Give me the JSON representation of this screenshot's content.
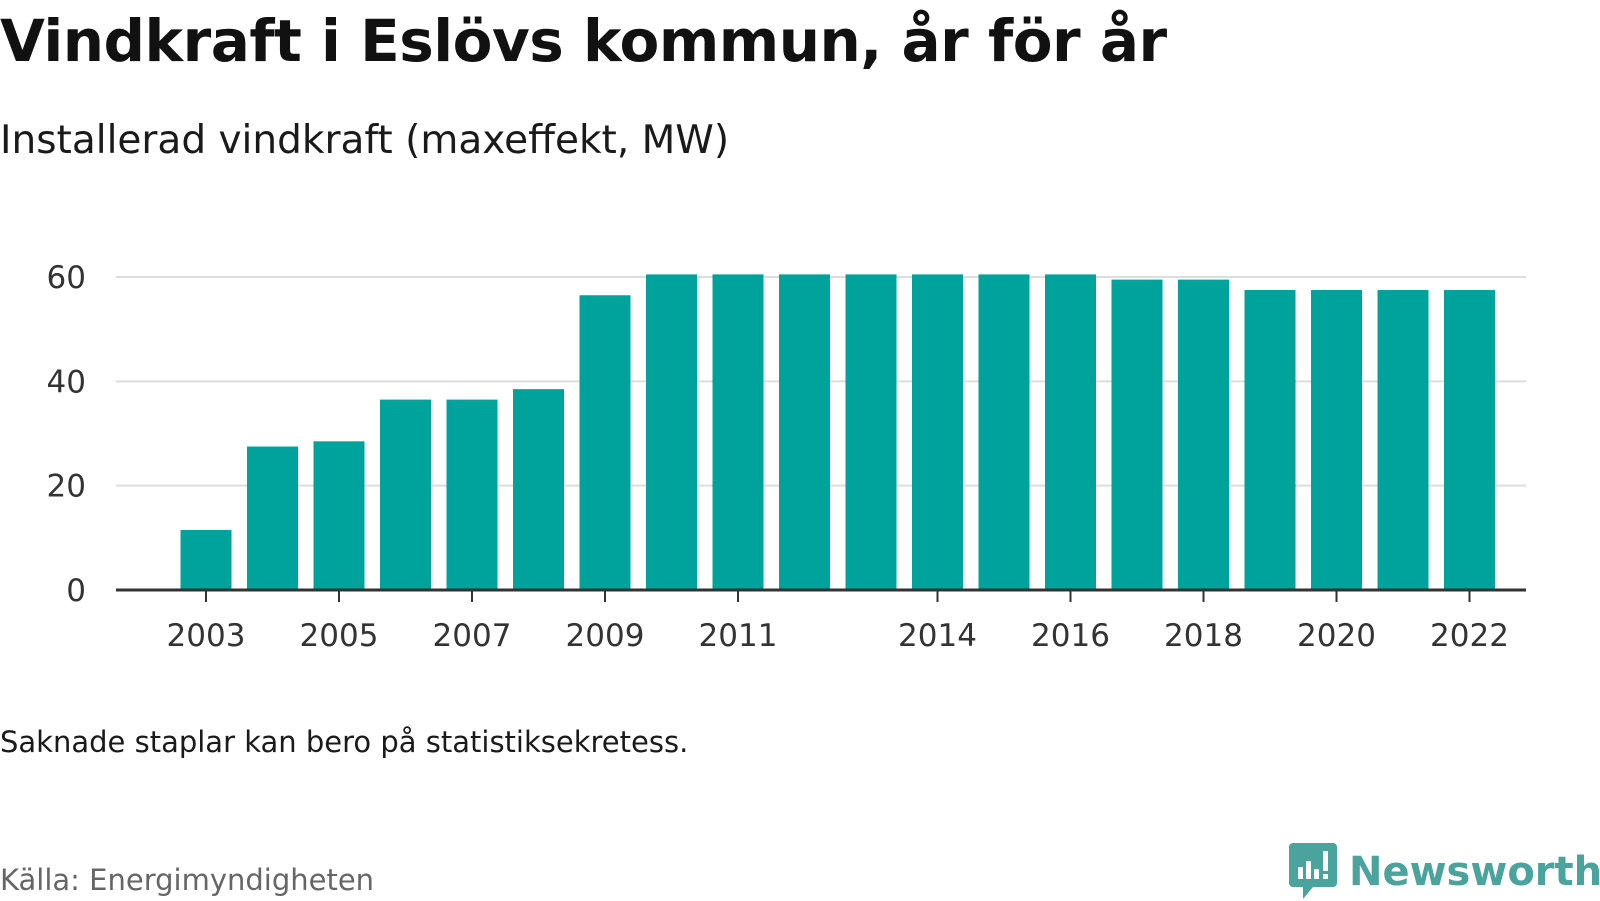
{
  "header": {
    "title": "Vindkraft i Eslövs kommun, år för år",
    "subtitle": "Installerad vindkraft (maxeffekt, MW)"
  },
  "footer": {
    "note": "Saknade staplar kan bero på statistiksekretess.",
    "source": "Källa: Energimyndigheten",
    "brand": "Newsworthy",
    "brand_icon": "newsworthy-logo-icon"
  },
  "colors": {
    "bar": "#00a39b",
    "grid": "#dddddd",
    "axis": "#333333",
    "brand": "#4aa39d"
  },
  "chart_data": {
    "type": "bar",
    "title": "Vindkraft i Eslövs kommun, år för år",
    "subtitle": "Installerad vindkraft (maxeffekt, MW)",
    "xlabel": "",
    "ylabel": "",
    "categories": [
      "2003",
      "2004",
      "2005",
      "2006",
      "2007",
      "2008",
      "2009",
      "2010",
      "2011",
      "2012",
      "2013",
      "2014",
      "2015",
      "2016",
      "2017",
      "2018",
      "2019",
      "2020",
      "2021",
      "2022"
    ],
    "values": [
      11.5,
      27.5,
      28.5,
      36.5,
      36.5,
      38.5,
      56.5,
      60.5,
      60.5,
      60.5,
      60.5,
      60.5,
      60.5,
      60.5,
      59.5,
      59.5,
      57.5,
      57.5,
      57.5,
      57.5
    ],
    "x_tick_labels": [
      "2003",
      "2005",
      "2007",
      "2009",
      "2011",
      "2014",
      "2016",
      "2018",
      "2020",
      "2022"
    ],
    "y_ticks": [
      0,
      20,
      40,
      60
    ],
    "ylim": [
      0,
      60
    ],
    "grid": true,
    "legend": "none"
  }
}
